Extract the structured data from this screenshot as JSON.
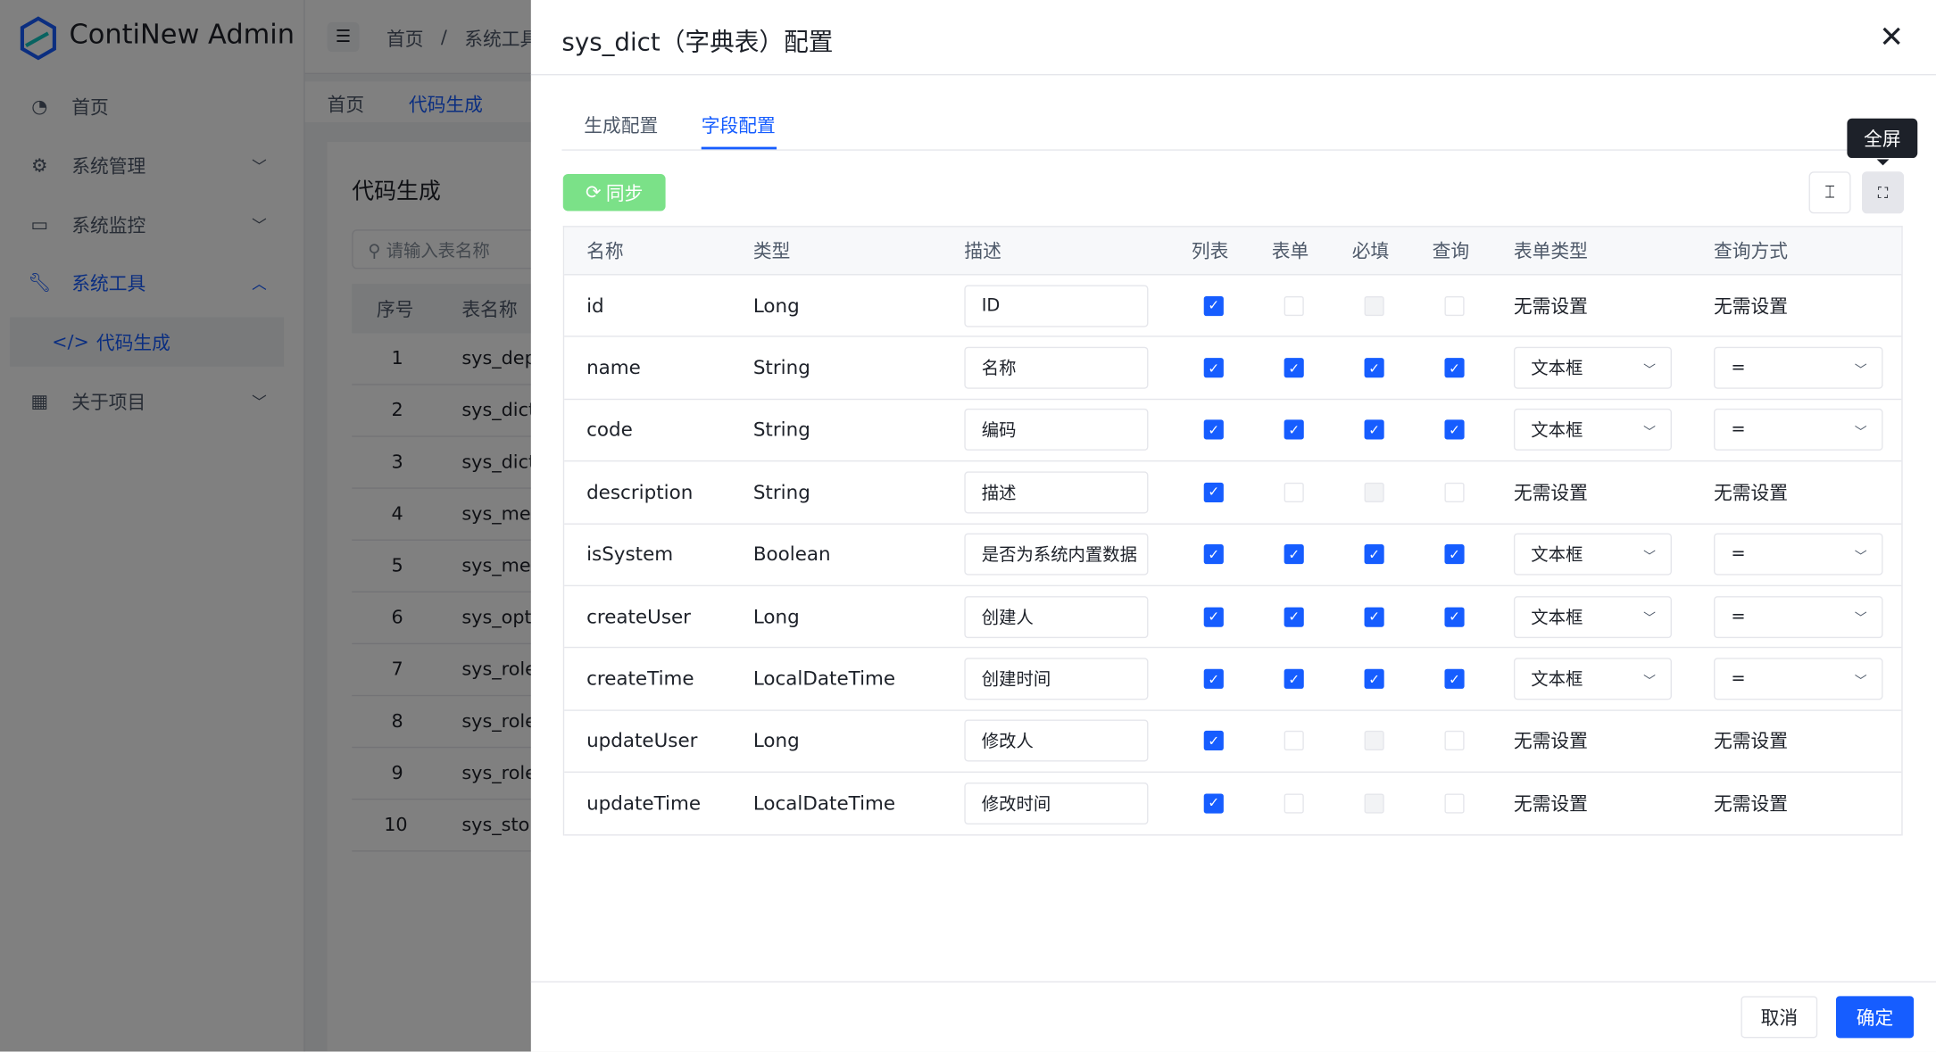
{
  "app": {
    "title": "ContiNew Admin"
  },
  "sidebar": {
    "items": [
      {
        "label": "首页",
        "icon": "dashboard-icon"
      },
      {
        "label": "系统管理",
        "icon": "gear-icon"
      },
      {
        "label": "系统监控",
        "icon": "monitor-icon"
      },
      {
        "label": "系统工具",
        "icon": "wrench-icon"
      },
      {
        "label": "代码生成",
        "icon": "code-icon"
      },
      {
        "label": "关于项目",
        "icon": "grid-icon"
      }
    ]
  },
  "breadcrumb": [
    "首页",
    "/",
    "系统工具"
  ],
  "page_tabs": [
    "首页",
    "代码生成"
  ],
  "page": {
    "title": "代码生成",
    "search_placeholder": "请输入表名称",
    "col_index": "序号",
    "col_name": "表名称",
    "rows": [
      [
        "1",
        "sys_dep"
      ],
      [
        "2",
        "sys_dict"
      ],
      [
        "3",
        "sys_dict"
      ],
      [
        "4",
        "sys_mes"
      ],
      [
        "5",
        "sys_mes"
      ],
      [
        "6",
        "sys_opt"
      ],
      [
        "7",
        "sys_role"
      ],
      [
        "8",
        "sys_role"
      ],
      [
        "9",
        "sys_role"
      ],
      [
        "10",
        "sys_stor"
      ]
    ]
  },
  "drawer": {
    "title": "sys_dict（字典表）配置",
    "tabs": [
      "生成配置",
      "字段配置"
    ],
    "active_tab": 1,
    "sync_label": "同步",
    "tooltip": "全屏",
    "headers": [
      "名称",
      "类型",
      "描述",
      "列表",
      "表单",
      "必填",
      "查询",
      "表单类型",
      "查询方式"
    ],
    "none_label": "无需设置",
    "rows": [
      {
        "name": "id",
        "type": "Long",
        "desc": "ID",
        "list": true,
        "form": false,
        "required": false,
        "query": false,
        "form_type": null,
        "query_type": null
      },
      {
        "name": "name",
        "type": "String",
        "desc": "名称",
        "list": true,
        "form": true,
        "required": true,
        "query": true,
        "form_type": "文本框",
        "query_type": "="
      },
      {
        "name": "code",
        "type": "String",
        "desc": "编码",
        "list": true,
        "form": true,
        "required": true,
        "query": true,
        "form_type": "文本框",
        "query_type": "="
      },
      {
        "name": "description",
        "type": "String",
        "desc": "描述",
        "list": true,
        "form": false,
        "required": false,
        "query": false,
        "form_type": null,
        "query_type": null
      },
      {
        "name": "isSystem",
        "type": "Boolean",
        "desc": "是否为系统内置数据",
        "list": true,
        "form": true,
        "required": true,
        "query": true,
        "form_type": "文本框",
        "query_type": "="
      },
      {
        "name": "createUser",
        "type": "Long",
        "desc": "创建人",
        "list": true,
        "form": true,
        "required": true,
        "query": true,
        "form_type": "文本框",
        "query_type": "="
      },
      {
        "name": "createTime",
        "type": "LocalDateTime",
        "desc": "创建时间",
        "list": true,
        "form": true,
        "required": true,
        "query": true,
        "form_type": "文本框",
        "query_type": "="
      },
      {
        "name": "updateUser",
        "type": "Long",
        "desc": "修改人",
        "list": true,
        "form": false,
        "required": false,
        "query": false,
        "form_type": null,
        "query_type": null
      },
      {
        "name": "updateTime",
        "type": "LocalDateTime",
        "desc": "修改时间",
        "list": true,
        "form": false,
        "required": false,
        "query": false,
        "form_type": null,
        "query_type": null
      }
    ],
    "cancel_label": "取消",
    "ok_label": "确定"
  },
  "colors": {
    "primary": "#165dff",
    "sync": "#7be188",
    "tooltip": "#1d2129"
  }
}
